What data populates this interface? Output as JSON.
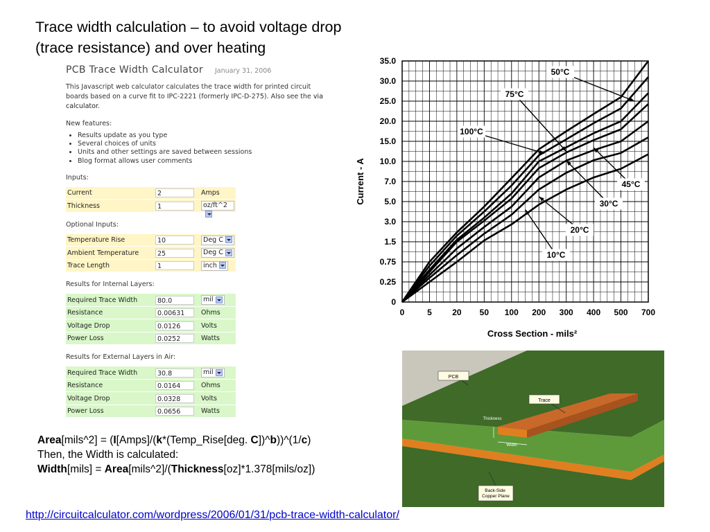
{
  "slide": {
    "title": "Trace width  calculation – to avoid voltage drop\n(trace resistance) and over heating",
    "source_url": "http://circuitcalculator.com/wordpress/2006/01/31/pcb-trace-width-calculator/"
  },
  "calculator": {
    "title": "PCB Trace Width Calculator",
    "date": "January 31, 2006",
    "description": "This Javascript web calculator calculates the trace width for printed circuit boards based on a curve fit to IPC-2221 (formerly IPC-D-275). Also see the",
    "via_link": "via calculator",
    "new_features_heading": "New features:",
    "features": [
      "Results update as you type",
      "Several choices of units",
      "Units and other settings are saved between sessions",
      "Blog format allows user comments"
    ],
    "inputs_heading": "Inputs:",
    "inputs": [
      {
        "label": "Current",
        "value": "2",
        "unit": "Amps",
        "select": false
      },
      {
        "label": "Thickness",
        "value": "1",
        "unit": "oz/ft^2",
        "select": true
      }
    ],
    "optional_heading": "Optional Inputs:",
    "optional": [
      {
        "label": "Temperature Rise",
        "value": "10",
        "unit": "Deg  C",
        "select": true
      },
      {
        "label": "Ambient Temperature",
        "value": "25",
        "unit": "Deg  C",
        "select": true
      },
      {
        "label": "Trace Length",
        "value": "1",
        "unit": "inch",
        "select": true
      }
    ],
    "internal_heading": "Results for Internal Layers:",
    "internal": [
      {
        "label": "Required Trace Width",
        "value": "80.0",
        "unit": "mil",
        "select": true
      },
      {
        "label": "Resistance",
        "value": "0.00631",
        "unit": "Ohms",
        "select": false
      },
      {
        "label": "Voltage Drop",
        "value": "0.0126",
        "unit": "Volts",
        "select": false
      },
      {
        "label": "Power Loss",
        "value": "0.0252",
        "unit": "Watts",
        "select": false
      }
    ],
    "external_heading": "Results for External Layers in Air:",
    "external": [
      {
        "label": "Required Trace Width",
        "value": "30.8",
        "unit": "mil",
        "select": true
      },
      {
        "label": "Resistance",
        "value": "0.0164",
        "unit": "Ohms",
        "select": false
      },
      {
        "label": "Voltage Drop",
        "value": "0.0328",
        "unit": "Volts",
        "select": false
      },
      {
        "label": "Power Loss",
        "value": "0.0656",
        "unit": "Watts",
        "select": false
      }
    ]
  },
  "formula": {
    "line1_parts": [
      "Area",
      "[mils^2] = (",
      "I",
      "[Amps]/(",
      "k",
      "*(Temp_Rise[deg. ",
      "C",
      "])^",
      "b",
      "))^(1/",
      "c",
      ")"
    ],
    "line2": "Then, the Width is calculated:",
    "line3_parts": [
      "Width",
      "[mils] = ",
      "Area",
      "[mils^2]/(",
      "Thickness",
      "[oz]*1.378[mils/oz])"
    ]
  },
  "chart_data": {
    "type": "line",
    "xlabel": "Cross Section - mils²",
    "ylabel": "Current - A",
    "x_ticks": [
      "0",
      "5",
      "20",
      "50",
      "100",
      "200",
      "300",
      "400",
      "500",
      "700"
    ],
    "y_ticks": [
      "0",
      "0.25",
      "0.75",
      "1.5",
      "3.0",
      "5.0",
      "7.0",
      "10.0",
      "15.0",
      "20.0",
      "25.0",
      "30.0",
      "35.0"
    ],
    "grid": true,
    "series": [
      {
        "name": "100°C",
        "points": [
          [
            0,
            0
          ],
          [
            5,
            0.75
          ],
          [
            20,
            2.2
          ],
          [
            50,
            4.5
          ],
          [
            100,
            7.5
          ],
          [
            200,
            13
          ],
          [
            300,
            17.5
          ],
          [
            400,
            21.8
          ],
          [
            500,
            26
          ],
          [
            700,
            35
          ]
        ]
      },
      {
        "name": "75°C",
        "points": [
          [
            0,
            0
          ],
          [
            5,
            0.65
          ],
          [
            20,
            1.95
          ],
          [
            50,
            4.0
          ],
          [
            100,
            6.6
          ],
          [
            200,
            11.5
          ],
          [
            300,
            15.5
          ],
          [
            400,
            19.5
          ],
          [
            500,
            23.2
          ],
          [
            700,
            31
          ]
        ]
      },
      {
        "name": "50°C",
        "points": [
          [
            0,
            0
          ],
          [
            5,
            0.55
          ],
          [
            20,
            1.65
          ],
          [
            50,
            3.4
          ],
          [
            100,
            5.8
          ],
          [
            200,
            10
          ],
          [
            300,
            13.5
          ],
          [
            400,
            17
          ],
          [
            500,
            20
          ],
          [
            700,
            27
          ]
        ]
      },
      {
        "name": "45°C",
        "points": [
          [
            0,
            0
          ],
          [
            5,
            0.5
          ],
          [
            20,
            1.5
          ],
          [
            50,
            3.1
          ],
          [
            100,
            5.3
          ],
          [
            200,
            9
          ],
          [
            300,
            12.2
          ],
          [
            400,
            15.3
          ],
          [
            500,
            18
          ],
          [
            700,
            24.3
          ]
        ]
      },
      {
        "name": "30°C",
        "points": [
          [
            0,
            0
          ],
          [
            5,
            0.42
          ],
          [
            20,
            1.25
          ],
          [
            50,
            2.6
          ],
          [
            100,
            4.5
          ],
          [
            200,
            7.6
          ],
          [
            300,
            10.2
          ],
          [
            400,
            12.8
          ],
          [
            500,
            15
          ],
          [
            700,
            20
          ]
        ]
      },
      {
        "name": "20°C",
        "points": [
          [
            0,
            0
          ],
          [
            5,
            0.35
          ],
          [
            20,
            1.0
          ],
          [
            50,
            2.1
          ],
          [
            100,
            3.7
          ],
          [
            200,
            6.2
          ],
          [
            300,
            8.3
          ],
          [
            400,
            10.3
          ],
          [
            500,
            12.1
          ],
          [
            700,
            16
          ]
        ]
      },
      {
        "name": "10°C",
        "points": [
          [
            0,
            0
          ],
          [
            5,
            0.25
          ],
          [
            20,
            0.75
          ],
          [
            50,
            1.6
          ],
          [
            100,
            2.8
          ],
          [
            200,
            4.7
          ],
          [
            300,
            6.2
          ],
          [
            400,
            7.6
          ],
          [
            500,
            8.9
          ],
          [
            700,
            11.8
          ]
        ]
      }
    ]
  },
  "illustration": {
    "labels": {
      "pcb": "PCB",
      "trace": "Trace",
      "thickness": "Thickness",
      "width": "Width",
      "backside": "Back-Side\nCopper Plane"
    },
    "colors": {
      "board": "#3f6a28",
      "board_side": "#5e9a3a",
      "copper": "#e07f20",
      "background": "#c9c6bc"
    }
  }
}
